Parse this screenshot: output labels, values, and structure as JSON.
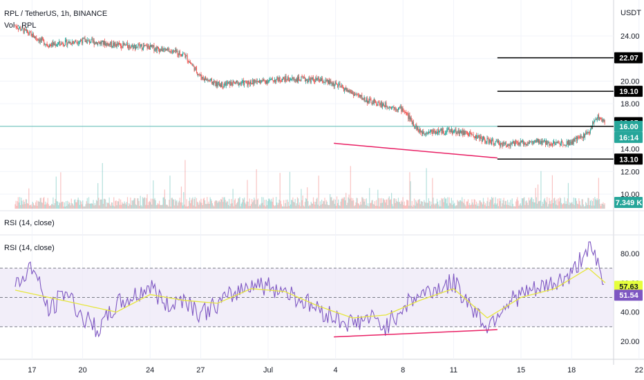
{
  "header": {
    "symbol": "RPL / TetherUS, 1h, BINANCE",
    "volume": "Vol · RPL",
    "rsi_top": "RSI (14, close)",
    "rsi_bottom": "RSI (14, close)"
  },
  "chart_data": [
    {
      "type": "line",
      "panel": "price",
      "title": "RPL / TetherUS, 1h, BINANCE",
      "ylabel": "USDT",
      "y_ticks": [
        "24.00",
        "22.00",
        "20.00",
        "18.00",
        "16.00",
        "14.00",
        "12.00",
        "10.00"
      ],
      "ylim": [
        9.5,
        25.5
      ],
      "x_ticks": [
        "17",
        "20",
        "24",
        "27",
        "Jul",
        "4",
        "8",
        "11",
        "15",
        "18",
        "22"
      ],
      "series": [
        {
          "values": [
            [
              16,
              24.9
            ],
            [
              18,
              23.2
            ],
            [
              20,
              23.6
            ],
            [
              22,
              23.2
            ],
            [
              24,
              23.0
            ],
            [
              26,
              22.4
            ],
            [
              27,
              20.4
            ],
            [
              28,
              19.7
            ],
            [
              30,
              19.9
            ],
            [
              32,
              20.2
            ],
            [
              34,
              20.1
            ],
            [
              35,
              19.7
            ],
            [
              37,
              18.2
            ],
            [
              39,
              17.5
            ],
            [
              40,
              15.5
            ],
            [
              42,
              15.6
            ],
            [
              43,
              15.3
            ],
            [
              44,
              14.7
            ],
            [
              45,
              14.4
            ],
            [
              47,
              14.6
            ],
            [
              48,
              14.5
            ],
            [
              49,
              14.6
            ],
            [
              50,
              15.4
            ],
            [
              50.5,
              16.9
            ],
            [
              51,
              16.3
            ]
          ]
        }
      ],
      "levels": [
        {
          "value": 22.07,
          "label": "22.07"
        },
        {
          "value": 19.1,
          "label": "19.10"
        },
        {
          "value": 16.0,
          "label": "16.00"
        },
        {
          "value": 13.1,
          "label": "13.10"
        }
      ],
      "current_price": {
        "value": "16.00",
        "countdown": "16:14"
      },
      "last_high_tag": "16.05",
      "trendline": [
        [
          34.9,
          14.5
        ],
        [
          44.6,
          13.2
        ]
      ],
      "volume_tag": "7.349 K",
      "colors": {
        "price": "#2962ff",
        "up": "#26a69a",
        "down": "#ef5350",
        "trendline": "#e91e63",
        "level": "#000000",
        "current": "#26a69a"
      }
    },
    {
      "type": "line",
      "panel": "rsi",
      "title": "RSI (14, close)",
      "y_ticks": [
        "80.00",
        "60.00",
        "40.00",
        "20.00"
      ],
      "ylim": [
        10,
        90
      ],
      "bands": [
        70,
        50,
        30
      ],
      "series": [
        {
          "name": "RSI",
          "color": "#7e57c2",
          "values": [
            [
              16,
              57
            ],
            [
              17,
              72
            ],
            [
              18,
              40
            ],
            [
              19,
              55
            ],
            [
              20,
              36
            ],
            [
              21,
              28
            ],
            [
              22,
              45
            ],
            [
              23,
              50
            ],
            [
              24,
              58
            ],
            [
              25,
              44
            ],
            [
              26,
              50
            ],
            [
              27,
              39
            ],
            [
              28,
              45
            ],
            [
              30,
              60
            ],
            [
              32,
              55
            ],
            [
              33,
              48
            ],
            [
              35,
              36
            ],
            [
              36,
              32
            ],
            [
              37,
              36
            ],
            [
              38,
              30
            ],
            [
              39,
              44
            ],
            [
              40,
              52
            ],
            [
              42,
              60
            ],
            [
              43,
              45
            ],
            [
              44,
              30
            ],
            [
              45,
              45
            ],
            [
              46,
              52
            ],
            [
              47,
              55
            ],
            [
              48,
              60
            ],
            [
              49,
              65
            ],
            [
              50,
              86
            ],
            [
              50.5,
              74
            ],
            [
              51,
              52
            ]
          ]
        },
        {
          "name": "SMA",
          "color": "#e6e63c",
          "values": [
            [
              16,
              55
            ],
            [
              18,
              50
            ],
            [
              20,
              45
            ],
            [
              22,
              40
            ],
            [
              24,
              52
            ],
            [
              26,
              48
            ],
            [
              28,
              46
            ],
            [
              30,
              56
            ],
            [
              32,
              54
            ],
            [
              34,
              44
            ],
            [
              36,
              36
            ],
            [
              38,
              38
            ],
            [
              40,
              48
            ],
            [
              42,
              56
            ],
            [
              44,
              36
            ],
            [
              46,
              50
            ],
            [
              48,
              56
            ],
            [
              50,
              70
            ],
            [
              51,
              60
            ]
          ]
        }
      ],
      "trendline": [
        [
          34.9,
          23
        ],
        [
          44.6,
          28
        ]
      ],
      "tags": [
        {
          "value": 57.63,
          "label": "57.63",
          "color": "#e6ff3c"
        },
        {
          "value": 51.54,
          "label": "51.54",
          "color": "#7e57c2"
        }
      ]
    }
  ]
}
